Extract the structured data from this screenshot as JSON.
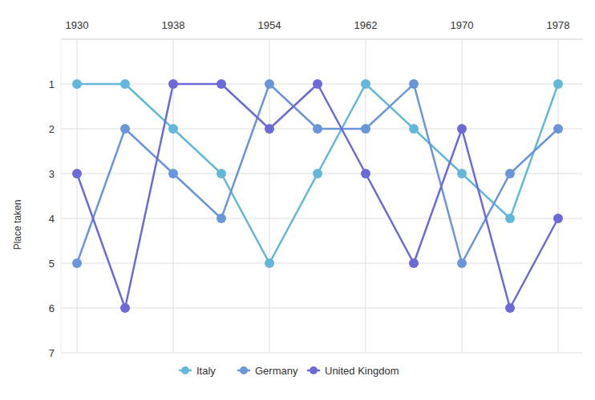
{
  "chart_data": {
    "type": "line",
    "y_label": "Place taken",
    "categories": [
      "1930",
      null,
      "1938",
      null,
      "1954",
      null,
      "1962",
      null,
      "1970",
      null,
      "1978"
    ],
    "series": [
      {
        "name": "Italy",
        "color": "#63b7d9",
        "values": [
          1,
          1,
          2,
          3,
          5,
          3,
          1,
          2,
          3,
          4,
          1
        ]
      },
      {
        "name": "Germany",
        "color": "#6b95d9",
        "values": [
          5,
          2,
          3,
          4,
          1,
          2,
          2,
          1,
          5,
          3,
          2
        ]
      },
      {
        "name": "United Kingdom",
        "color": "#6c6ad6",
        "values": [
          3,
          6,
          1,
          1,
          2,
          1,
          3,
          5,
          2,
          6,
          4
        ]
      }
    ],
    "ylim": [
      7,
      0
    ],
    "yticks": [
      1,
      2,
      3,
      4,
      5,
      6,
      7
    ],
    "grid": true,
    "legend": "bottom",
    "marker": "circle",
    "line_style": "solid"
  }
}
